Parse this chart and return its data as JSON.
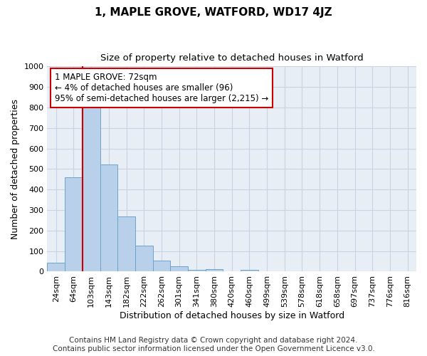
{
  "title": "1, MAPLE GROVE, WATFORD, WD17 4JZ",
  "subtitle": "Size of property relative to detached houses in Watford",
  "xlabel": "Distribution of detached houses by size in Watford",
  "ylabel": "Number of detached properties",
  "categories": [
    "24sqm",
    "64sqm",
    "103sqm",
    "143sqm",
    "182sqm",
    "222sqm",
    "262sqm",
    "301sqm",
    "341sqm",
    "380sqm",
    "420sqm",
    "460sqm",
    "499sqm",
    "539sqm",
    "578sqm",
    "618sqm",
    "658sqm",
    "697sqm",
    "737sqm",
    "776sqm",
    "816sqm"
  ],
  "values": [
    42,
    460,
    813,
    522,
    270,
    125,
    55,
    25,
    10,
    13,
    0,
    10,
    0,
    0,
    0,
    0,
    0,
    0,
    0,
    0,
    0
  ],
  "bar_color": "#b8d0ea",
  "bar_edge_color": "#6ba3cc",
  "vline_x": 1.5,
  "vline_color": "#cc0000",
  "ylim": [
    0,
    1000
  ],
  "yticks": [
    0,
    100,
    200,
    300,
    400,
    500,
    600,
    700,
    800,
    900,
    1000
  ],
  "annotation_text": "1 MAPLE GROVE: 72sqm\n← 4% of detached houses are smaller (96)\n95% of semi-detached houses are larger (2,215) →",
  "annotation_box_color": "#ffffff",
  "annotation_box_edge_color": "#cc0000",
  "footer_line1": "Contains HM Land Registry data © Crown copyright and database right 2024.",
  "footer_line2": "Contains public sector information licensed under the Open Government Licence v3.0.",
  "background_color": "#ffffff",
  "plot_bg_color": "#e8eef5",
  "grid_color": "#c8d4e4",
  "title_fontsize": 11,
  "subtitle_fontsize": 9.5,
  "axis_label_fontsize": 9,
  "tick_fontsize": 8,
  "annotation_fontsize": 8.5,
  "footer_fontsize": 7.5
}
